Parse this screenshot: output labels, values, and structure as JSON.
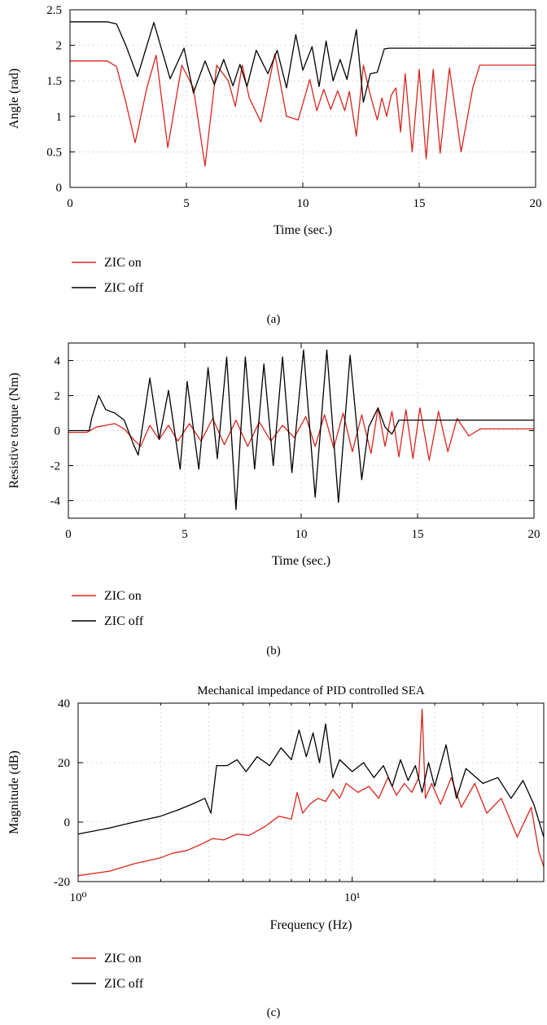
{
  "colors": {
    "zic_on": "#d7261e",
    "zic_off": "#000000"
  },
  "chart_data": [
    {
      "type": "line",
      "caption": "(a)",
      "title": "",
      "xlabel": "Time (sec.)",
      "ylabel": "Angle (rad)",
      "xlim": [
        0,
        20
      ],
      "ylim": [
        0,
        2.5
      ],
      "xticks": [
        0,
        5,
        10,
        15,
        20
      ],
      "yticks": [
        0,
        0.5,
        1,
        1.5,
        2,
        2.5
      ],
      "grid": true,
      "legend_position": "below",
      "series": [
        {
          "name": "ZIC on",
          "color": "#d7261e",
          "x": [
            0,
            1.6,
            2.0,
            2.4,
            2.8,
            3.3,
            3.7,
            4.2,
            4.8,
            5.3,
            5.8,
            6.3,
            6.8,
            7.1,
            7.4,
            7.7,
            8.2,
            8.8,
            9.3,
            9.8,
            10.3,
            10.6,
            10.9,
            11.2,
            11.5,
            11.8,
            12.0,
            12.3,
            12.6,
            12.9,
            13.2,
            13.4,
            13.6,
            13.8,
            14.0,
            14.2,
            14.4,
            14.7,
            15.0,
            15.3,
            15.6,
            15.9,
            16.3,
            16.8,
            17.3,
            17.6,
            18.0,
            20
          ],
          "y": [
            1.78,
            1.78,
            1.7,
            1.2,
            0.63,
            1.4,
            1.86,
            0.56,
            1.72,
            1.4,
            0.3,
            1.72,
            1.5,
            1.14,
            1.72,
            1.26,
            0.92,
            1.88,
            1.0,
            0.95,
            1.52,
            1.08,
            1.38,
            1.1,
            1.36,
            1.08,
            1.35,
            0.72,
            1.72,
            1.3,
            0.95,
            1.26,
            1.0,
            1.3,
            1.4,
            0.78,
            1.6,
            0.5,
            1.66,
            0.4,
            1.66,
            0.48,
            1.68,
            0.5,
            1.4,
            1.72,
            1.72,
            1.72
          ]
        },
        {
          "name": "ZIC off",
          "color": "#000000",
          "x": [
            0,
            1.6,
            2.0,
            2.4,
            2.9,
            3.6,
            4.3,
            4.9,
            5.3,
            5.8,
            6.2,
            6.6,
            7.0,
            7.3,
            7.6,
            8.0,
            8.5,
            8.9,
            9.3,
            9.7,
            10.0,
            10.4,
            10.7,
            11.0,
            11.3,
            11.6,
            11.9,
            12.3,
            12.6,
            12.9,
            13.2,
            13.5,
            13.7,
            20
          ],
          "y": [
            2.33,
            2.33,
            2.3,
            2.0,
            1.56,
            2.32,
            1.53,
            1.96,
            1.33,
            1.78,
            1.45,
            1.8,
            1.43,
            1.73,
            1.42,
            1.93,
            1.6,
            1.93,
            1.4,
            2.15,
            1.65,
            1.98,
            1.42,
            2.06,
            1.5,
            1.8,
            1.52,
            2.22,
            1.2,
            1.6,
            1.62,
            1.95,
            1.96,
            1.96
          ]
        }
      ]
    },
    {
      "type": "line",
      "caption": "(b)",
      "title": "",
      "xlabel": "Time (sec.)",
      "ylabel": "Resistive torque (Nm)",
      "xlim": [
        0,
        20
      ],
      "ylim": [
        -5,
        5
      ],
      "xticks": [
        0,
        5,
        10,
        15,
        20
      ],
      "yticks": [
        -4,
        -2,
        0,
        2,
        4
      ],
      "grid": true,
      "legend_position": "below",
      "series": [
        {
          "name": "ZIC on",
          "color": "#d7261e",
          "x": [
            0,
            0.8,
            1.2,
            1.6,
            2.0,
            2.4,
            2.8,
            3.1,
            3.5,
            3.9,
            4.3,
            4.7,
            5.2,
            5.7,
            6.2,
            6.7,
            7.2,
            7.7,
            8.2,
            8.7,
            9.2,
            9.7,
            10.2,
            10.6,
            11.0,
            11.4,
            11.8,
            12.2,
            12.6,
            13.0,
            13.3,
            13.6,
            13.9,
            14.2,
            14.5,
            14.8,
            15.1,
            15.5,
            15.9,
            16.3,
            16.7,
            17.2,
            17.7,
            20
          ],
          "y": [
            -0.1,
            -0.1,
            0.2,
            0.3,
            0.4,
            0.1,
            -0.5,
            -0.9,
            0.3,
            -0.5,
            0.3,
            -0.6,
            0.4,
            -0.6,
            0.7,
            -0.8,
            0.6,
            -0.9,
            0.5,
            -0.6,
            0.3,
            -0.4,
            0.8,
            -0.9,
            0.9,
            -1.0,
            1.0,
            -1.2,
            0.9,
            -1.3,
            1.3,
            -0.9,
            1.1,
            -1.5,
            1.2,
            -1.6,
            1.3,
            -1.7,
            1.1,
            -1.2,
            0.7,
            -0.3,
            0.1,
            0.1
          ]
        },
        {
          "name": "ZIC off",
          "color": "#000000",
          "x": [
            0,
            0.9,
            1.0,
            1.3,
            1.6,
            2.0,
            2.4,
            2.8,
            3.0,
            3.5,
            3.9,
            4.3,
            4.8,
            5.1,
            5.6,
            6.0,
            6.4,
            6.8,
            7.2,
            7.6,
            8.0,
            8.4,
            8.8,
            9.2,
            9.6,
            10.1,
            10.6,
            11.1,
            11.6,
            12.1,
            12.6,
            12.9,
            13.3,
            13.6,
            13.9,
            14.2,
            20
          ],
          "y": [
            0,
            0,
            0.7,
            2.0,
            1.2,
            1.0,
            0.6,
            -0.8,
            -1.4,
            3.0,
            -0.5,
            2.3,
            -2.2,
            2.8,
            -2.2,
            3.6,
            -1.6,
            4.2,
            -4.5,
            4.2,
            -2.2,
            3.8,
            -2.0,
            4.2,
            -2.4,
            4.6,
            -3.8,
            4.6,
            -4.1,
            4.3,
            -2.8,
            0.2,
            1.3,
            0.2,
            -0.2,
            0.6,
            0.6
          ]
        }
      ]
    },
    {
      "type": "line",
      "caption": "(c)",
      "title": "Mechanical impedance of PID controlled SEA",
      "xlabel": "Frequency (Hz)",
      "ylabel": "Magnitude (dB)",
      "xscale": "log",
      "xlim": [
        1,
        50
      ],
      "ylim": [
        -20,
        40
      ],
      "yticks": [
        -20,
        0,
        20,
        40
      ],
      "grid": true,
      "legend_position": "below",
      "series": [
        {
          "name": "ZIC on",
          "color": "#d7261e",
          "x": [
            1.0,
            1.3,
            1.6,
            2.0,
            2.2,
            2.5,
            2.8,
            3.1,
            3.4,
            3.8,
            4.2,
            4.8,
            5.4,
            6.0,
            6.3,
            6.6,
            7.0,
            7.5,
            8.0,
            8.5,
            9.0,
            9.5,
            10.5,
            11.5,
            12.5,
            13.5,
            14.5,
            15.5,
            16.5,
            17.5,
            18.0,
            18.5,
            19.5,
            21,
            23,
            25,
            28,
            31,
            35,
            40,
            45,
            48,
            50
          ],
          "y": [
            -18,
            -16.5,
            -14,
            -12,
            -10.5,
            -9.5,
            -7.5,
            -5.5,
            -6,
            -4,
            -4.5,
            -1.5,
            2,
            1,
            10,
            3,
            6,
            8,
            7,
            11,
            8,
            13,
            10,
            12,
            8,
            15,
            9,
            13,
            10,
            15,
            38,
            8,
            13,
            6,
            15,
            5,
            13,
            3,
            8,
            -5,
            5,
            -10,
            -15
          ]
        },
        {
          "name": "ZIC off",
          "color": "#000000",
          "x": [
            1.0,
            1.3,
            1.6,
            2.0,
            2.3,
            2.6,
            2.9,
            3.05,
            3.2,
            3.5,
            3.8,
            4.1,
            4.5,
            5.0,
            5.5,
            6.0,
            6.4,
            6.8,
            7.2,
            7.6,
            8.0,
            8.5,
            9.0,
            10.0,
            11.0,
            12.0,
            13.0,
            14.0,
            15.0,
            16.0,
            17.0,
            18.0,
            19.0,
            20,
            22,
            24,
            26,
            30,
            34,
            38,
            42,
            46,
            50
          ],
          "y": [
            -4,
            -2,
            0,
            2,
            4,
            6,
            8,
            3,
            19,
            19,
            21,
            17,
            22,
            19,
            25,
            21,
            31,
            22,
            30,
            20,
            33,
            15,
            21,
            17,
            20,
            15,
            19,
            12,
            21,
            14,
            19,
            10,
            20,
            12,
            26,
            8,
            18,
            13,
            15,
            8,
            14,
            6,
            -5
          ]
        }
      ]
    }
  ]
}
